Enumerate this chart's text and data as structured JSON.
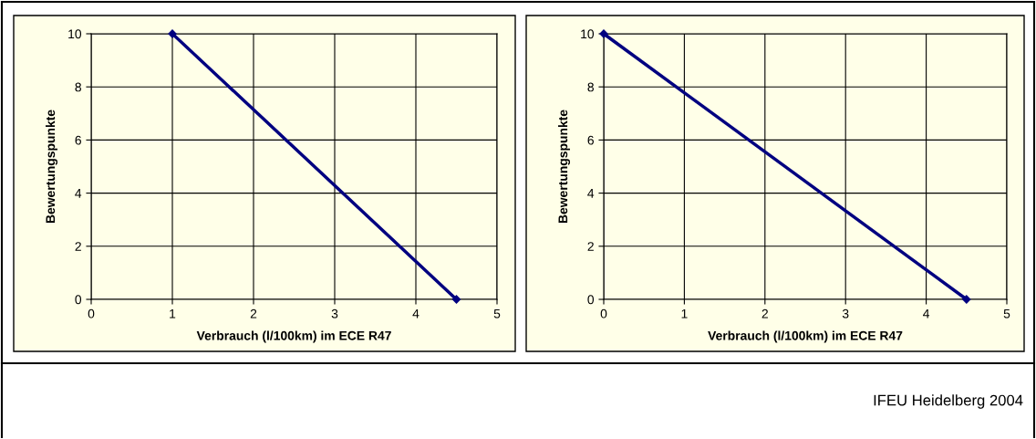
{
  "chart_data": [
    {
      "type": "line",
      "xlabel": "Verbrauch (l/100km) im ECE R47",
      "ylabel": "Bewertungspunkte",
      "xlim": [
        0,
        5
      ],
      "xticks": [
        0,
        1,
        2,
        3,
        4,
        5
      ],
      "ylim": [
        0,
        10
      ],
      "yticks": [
        0,
        2,
        4,
        6,
        8,
        10
      ],
      "grid": true,
      "marker": "diamond",
      "line_style": "solid",
      "series": [
        {
          "color": "#000080",
          "x": [
            1,
            4.5
          ],
          "values": [
            10,
            0
          ]
        }
      ]
    },
    {
      "type": "line",
      "xlabel": "Verbrauch (l/100km) im ECE R47",
      "ylabel": "Bewertungspunkte",
      "xlim": [
        0,
        5
      ],
      "xticks": [
        0,
        1,
        2,
        3,
        4,
        5
      ],
      "ylim": [
        0,
        10
      ],
      "yticks": [
        0,
        2,
        4,
        6,
        8,
        10
      ],
      "grid": true,
      "marker": "diamond",
      "line_style": "solid",
      "series": [
        {
          "color": "#000080",
          "x": [
            0,
            4.5
          ],
          "values": [
            10,
            0
          ]
        }
      ],
      "annotations": [
        "IFEU Heidelberg 2004"
      ]
    }
  ]
}
